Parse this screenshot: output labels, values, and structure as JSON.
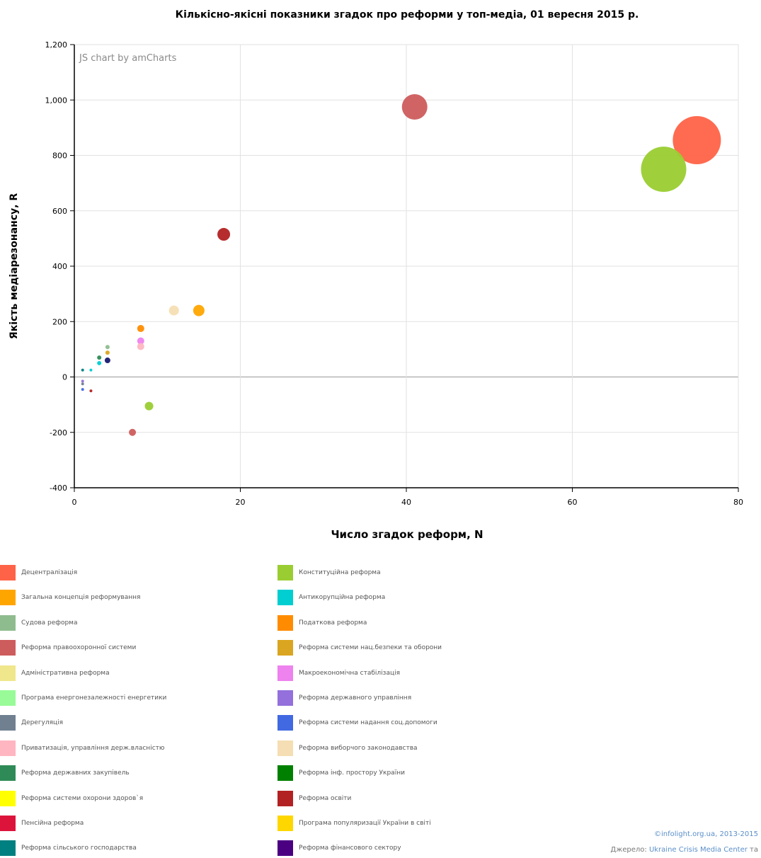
{
  "chart_data": {
    "type": "scatter",
    "title": "Кількісно-якісні показники згадок про реформи у топ-медіа, 01 вересня 2015 р.",
    "xlabel": "Число згадок реформ, N",
    "ylabel": "Якість медіарезонансу, R",
    "xlim": [
      0,
      80
    ],
    "ylim": [
      -400,
      1200
    ],
    "x_ticks": [
      "0",
      "20",
      "40",
      "60",
      "80"
    ],
    "y_ticks": [
      "-400",
      "-200",
      "0",
      "200",
      "400",
      "600",
      "800",
      "1,000",
      "1,200"
    ],
    "grid": true,
    "watermark": "JS chart by amCharts",
    "points": [
      {
        "x": 75,
        "y": 855,
        "size": 34,
        "color": "#FF6347"
      },
      {
        "x": 71,
        "y": 750,
        "size": 32,
        "color": "#9ACD32"
      },
      {
        "x": 41,
        "y": 975,
        "size": 18,
        "color": "#CD5C5C"
      },
      {
        "x": 18,
        "y": 515,
        "size": 9,
        "color": "#B22222"
      },
      {
        "x": 15,
        "y": 240,
        "size": 8,
        "color": "#FFA500"
      },
      {
        "x": 12,
        "y": 240,
        "size": 7,
        "color": "#F5DEB3"
      },
      {
        "x": 8,
        "y": 175,
        "size": 5,
        "color": "#FF8C00"
      },
      {
        "x": 8,
        "y": 130,
        "size": 5,
        "color": "#EE82EE"
      },
      {
        "x": 8,
        "y": 110,
        "size": 5,
        "color": "#FFB6C1"
      },
      {
        "x": 9,
        "y": -105,
        "size": 6,
        "color": "#9ACD32"
      },
      {
        "x": 7,
        "y": -200,
        "size": 5,
        "color": "#CD5C5C"
      },
      {
        "x": 4,
        "y": 108,
        "size": 3,
        "color": "#8FBC8F"
      },
      {
        "x": 4,
        "y": 88,
        "size": 3,
        "color": "#DAA520"
      },
      {
        "x": 4,
        "y": 60,
        "size": 4,
        "color": "#191970"
      },
      {
        "x": 3,
        "y": 70,
        "size": 3,
        "color": "#2E8B57"
      },
      {
        "x": 3,
        "y": 50,
        "size": 3,
        "color": "#00CED1"
      },
      {
        "x": 2,
        "y": 25,
        "size": 2,
        "color": "#00CED1"
      },
      {
        "x": 1,
        "y": 25,
        "size": 2,
        "color": "#008080"
      },
      {
        "x": 1,
        "y": -15,
        "size": 2,
        "color": "#9370DB"
      },
      {
        "x": 1,
        "y": -25,
        "size": 2,
        "color": "#708090"
      },
      {
        "x": 1,
        "y": -45,
        "size": 2,
        "color": "#4169E1"
      },
      {
        "x": 2,
        "y": -50,
        "size": 2,
        "color": "#B22222"
      }
    ],
    "legend": [
      {
        "label": "Децентралізація",
        "color": "#FF6347"
      },
      {
        "label": "Конституційна реформа",
        "color": "#9ACD32"
      },
      {
        "label": "Загальна концепція реформування",
        "color": "#FFA500"
      },
      {
        "label": "Антикорупційна реформа",
        "color": "#00CED1"
      },
      {
        "label": "Судова реформа",
        "color": "#8FBC8F"
      },
      {
        "label": "Податкова реформа",
        "color": "#FF8C00"
      },
      {
        "label": "Реформа правоохоронної системи",
        "color": "#CD5C5C"
      },
      {
        "label": "Реформа системи нац.безпеки та оборони",
        "color": "#DAA520"
      },
      {
        "label": "Адміністративна реформа",
        "color": "#F0E68C"
      },
      {
        "label": "Макроекономічна стабілізація",
        "color": "#EE82EE"
      },
      {
        "label": "Програма енергонезалежності енергетики",
        "color": "#98FB98"
      },
      {
        "label": "Реформа державного управління",
        "color": "#9370DB"
      },
      {
        "label": "Дерегуляція",
        "color": "#708090"
      },
      {
        "label": "Реформа системи надання соц.допомоги",
        "color": "#4169E1"
      },
      {
        "label": "Приватизація, управління держ.власністю",
        "color": "#FFB6C1"
      },
      {
        "label": "Реформа виборчого законодавства",
        "color": "#F5DEB3"
      },
      {
        "label": "Реформа державних закупівель",
        "color": "#2E8B57"
      },
      {
        "label": "Реформа інф. простору України",
        "color": "#008000"
      },
      {
        "label": "Реформа системи охорони здоров`я",
        "color": "#FFFF00"
      },
      {
        "label": "Реформа освіти",
        "color": "#B22222"
      },
      {
        "label": "Пенсійна реформа",
        "color": "#DC143C"
      },
      {
        "label": "Програма популяризації України в світі",
        "color": "#FFD700"
      },
      {
        "label": "Реформа сільського господарства",
        "color": "#008080"
      },
      {
        "label": "Реформа фінансового сектору",
        "color": "#4B0082"
      }
    ]
  },
  "credits": {
    "copyright": "©infolight.org.ua, 2013-2015",
    "source_prefix": "Джерело: ",
    "source_link": "Ukraine Crisis Media Center",
    "source_suffix": " та"
  }
}
